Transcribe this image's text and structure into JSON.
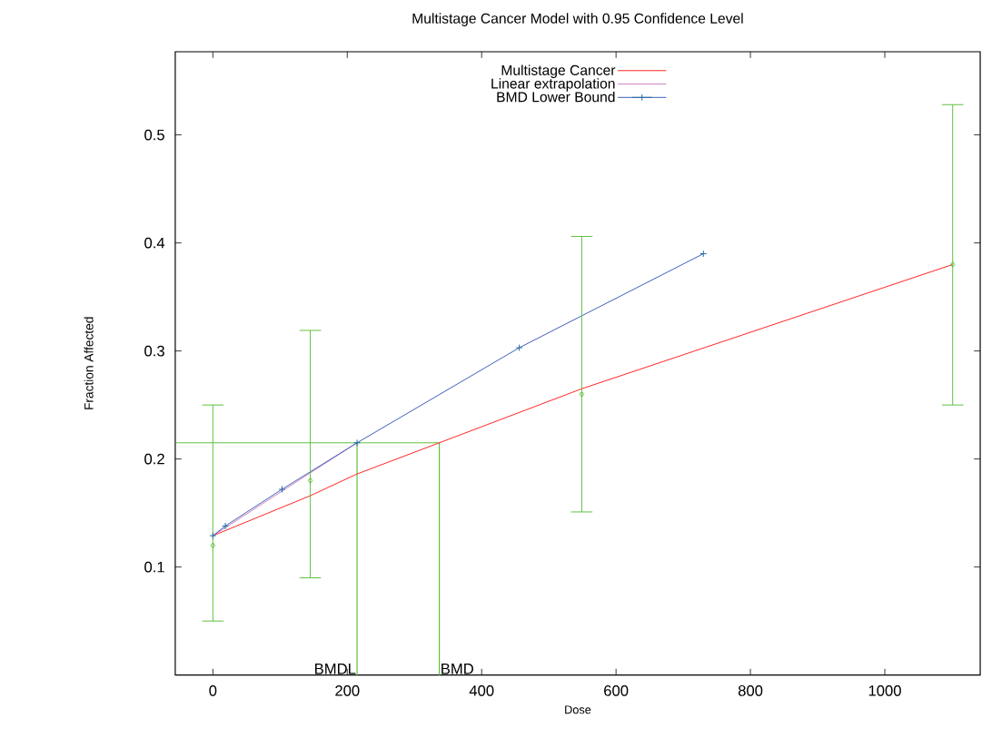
{
  "chart_data": {
    "type": "line",
    "title": "Multistage Cancer Model with 0.95 Confidence Level",
    "xlabel": "Dose",
    "ylabel": "Fraction Affected",
    "xlim": [
      -56,
      1142
    ],
    "ylim": [
      0,
      0.577
    ],
    "xticks": [
      0,
      200,
      400,
      600,
      800,
      1000
    ],
    "yticks": [
      0.1,
      0.2,
      0.3,
      0.4,
      0.5
    ],
    "legend": "top",
    "grid": false,
    "line_style": "solid",
    "series": [
      {
        "name": "Multistage Cancer",
        "color": "#ff2020",
        "marker": "none",
        "x": [
          0,
          145,
          214,
          337,
          549,
          1101
        ],
        "values": [
          0.129,
          0.166,
          0.186,
          0.215,
          0.265,
          0.38
        ]
      },
      {
        "name": "Linear extrapolation",
        "color": "#d080c0",
        "x": [
          0,
          214.6
        ],
        "values": [
          0.129,
          0.215
        ]
      },
      {
        "name": "BMD Lower Bound",
        "color": "#3a5cb8",
        "marker": "cross",
        "x": [
          0,
          18.6,
          103,
          214.6,
          456,
          730
        ],
        "values": [
          0.129,
          0.138,
          0.172,
          0.215,
          0.303,
          0.39
        ]
      },
      {
        "type": "scatter",
        "color": "#5cbf3c",
        "marker": "diamond",
        "x": [
          0,
          145,
          549,
          1101
        ],
        "values": [
          0.12,
          0.18,
          0.26,
          0.38
        ],
        "errors": [
          [
            0.05,
            0.25
          ],
          [
            0.09,
            0.319
          ],
          [
            0.151,
            0.406
          ],
          [
            0.25,
            0.528
          ]
        ]
      }
    ],
    "ref_lines": [
      {
        "axis": "y",
        "value": 0.215,
        "color": "#5cbf3c"
      },
      {
        "axis": "x",
        "value": 214.6,
        "label": "BMDL",
        "color": "#5cbf3c"
      },
      {
        "axis": "x",
        "value": 337,
        "label": "BMD",
        "color": "#5cbf3c"
      }
    ]
  }
}
